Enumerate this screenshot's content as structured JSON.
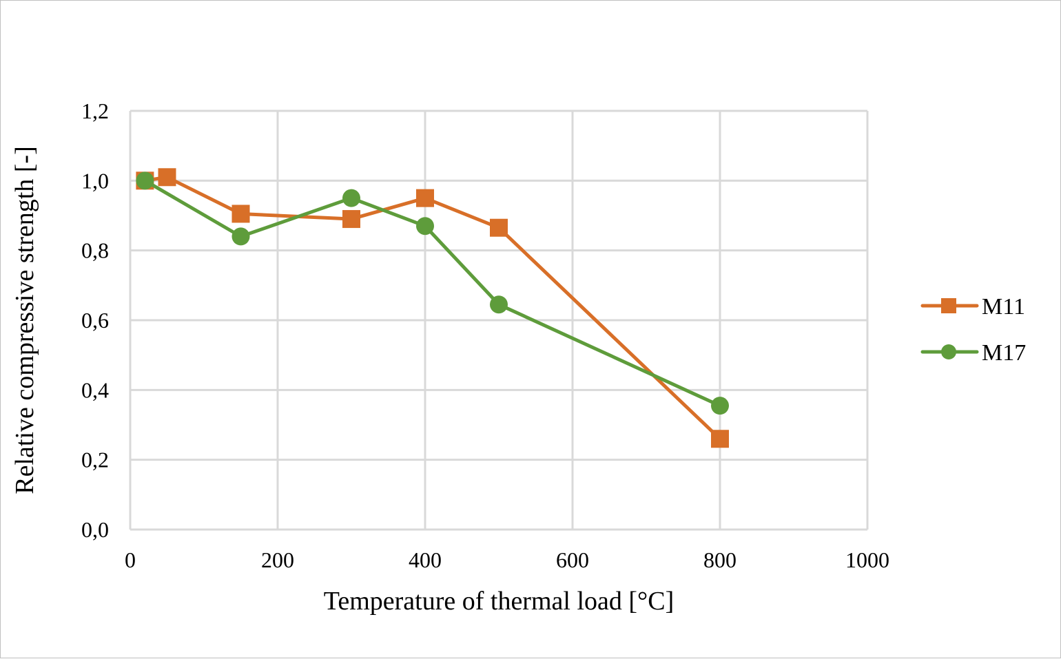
{
  "chart_data": {
    "type": "line",
    "title": "",
    "xlabel": "Temperature of thermal load [°C]",
    "ylabel": "Relative compressive strength [-]",
    "xlim": [
      0,
      1000
    ],
    "ylim": [
      0,
      1.2
    ],
    "x_ticks": [
      0,
      200,
      400,
      600,
      800,
      1000
    ],
    "x_tick_labels": [
      "0",
      "200",
      "400",
      "600",
      "800",
      "1000"
    ],
    "y_ticks": [
      0,
      0.2,
      0.4,
      0.6,
      0.8,
      1.0,
      1.2
    ],
    "y_tick_labels": [
      "0,0",
      "0,2",
      "0,4",
      "0,6",
      "0,8",
      "1,0",
      "1,2"
    ],
    "grid": true,
    "legend_position": "right",
    "series": [
      {
        "name": "M11",
        "color": "#d86f28",
        "marker": "square",
        "x": [
          20,
          50,
          150,
          300,
          400,
          500,
          800
        ],
        "y": [
          1.0,
          1.01,
          0.905,
          0.89,
          0.95,
          0.865,
          0.26
        ]
      },
      {
        "name": "M17",
        "color": "#5e9c3b",
        "marker": "circle",
        "x": [
          20,
          150,
          300,
          400,
          500,
          800
        ],
        "y": [
          1.0,
          0.84,
          0.95,
          0.87,
          0.645,
          0.355
        ]
      }
    ]
  }
}
